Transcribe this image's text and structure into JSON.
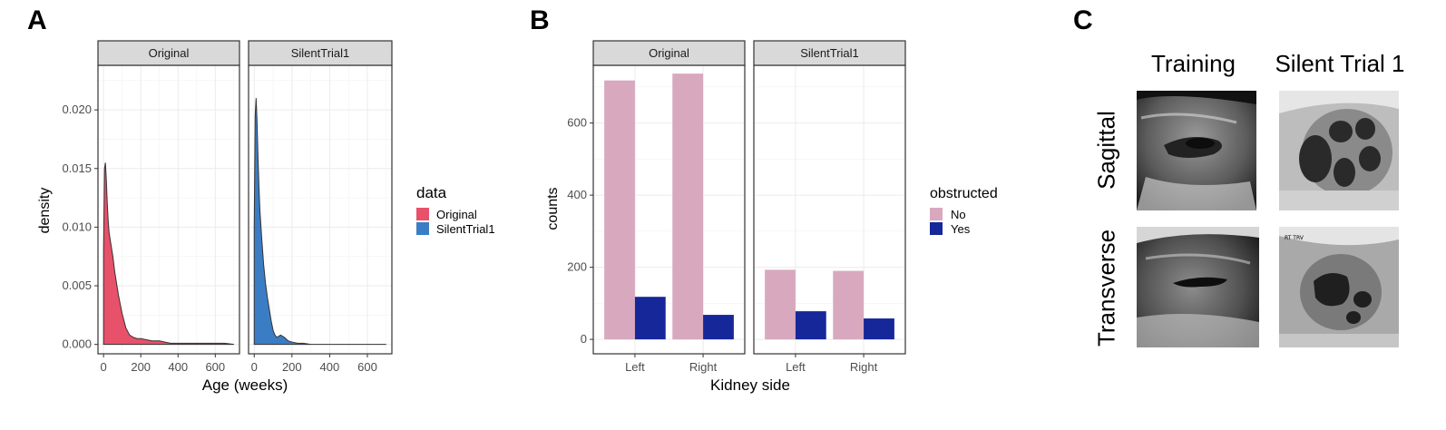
{
  "panels": {
    "a": "A",
    "b": "B",
    "c": "C"
  },
  "chart_data": [
    {
      "type": "area",
      "panel": "A",
      "facets": [
        "Original",
        "SilentTrial1"
      ],
      "xlabel": "Age (weeks)",
      "ylabel": "density",
      "xlim": [
        -30,
        730
      ],
      "ylim": [
        -0.0008,
        0.0238
      ],
      "xticks": [
        0,
        200,
        400,
        600
      ],
      "yticks": [
        0.0,
        0.005,
        0.01,
        0.015,
        0.02
      ],
      "ytick_labels": [
        "0.000",
        "0.005",
        "0.010",
        "0.015",
        "0.020"
      ],
      "legend_title": "data",
      "legend_position": "right",
      "grid": true,
      "series": [
        {
          "name": "Original",
          "color": "#E8516A",
          "x": [
            0,
            5,
            10,
            15,
            20,
            25,
            30,
            40,
            50,
            60,
            70,
            80,
            90,
            100,
            120,
            140,
            160,
            180,
            200,
            230,
            260,
            300,
            330,
            360,
            400,
            450,
            500,
            550,
            600,
            650,
            700
          ],
          "y": [
            0.008,
            0.015,
            0.0155,
            0.014,
            0.012,
            0.0105,
            0.0095,
            0.0085,
            0.0075,
            0.0062,
            0.0052,
            0.0042,
            0.0034,
            0.0026,
            0.0014,
            0.0008,
            0.0006,
            0.0005,
            0.0005,
            0.0004,
            0.0003,
            0.0003,
            0.0002,
            0.0001,
            0.0001,
            0.0001,
            0.0001,
            0.0001,
            0.0001,
            0.0001,
            0.0
          ]
        },
        {
          "name": "SilentTrial1",
          "color": "#3B7DC4",
          "x": [
            0,
            5,
            10,
            15,
            20,
            25,
            30,
            40,
            50,
            60,
            70,
            80,
            90,
            100,
            110,
            120,
            140,
            160,
            180,
            200,
            230,
            260,
            300,
            400,
            500,
            600,
            700
          ],
          "y": [
            0.01,
            0.0195,
            0.021,
            0.019,
            0.016,
            0.0135,
            0.0115,
            0.009,
            0.0068,
            0.0052,
            0.004,
            0.003,
            0.002,
            0.0012,
            0.0008,
            0.0006,
            0.0008,
            0.0006,
            0.0003,
            0.0002,
            0.0001,
            0.0001,
            0.0,
            0.0,
            0.0,
            0.0,
            0.0
          ]
        }
      ]
    },
    {
      "type": "bar",
      "panel": "B",
      "facets": [
        "Original",
        "SilentTrial1"
      ],
      "categories": [
        "Left",
        "Right"
      ],
      "xlabel": "Kidney side",
      "ylabel": "counts",
      "ylim": [
        -40,
        760
      ],
      "yticks": [
        0,
        200,
        400,
        600
      ],
      "legend_title": "obstructed",
      "legend_position": "right",
      "grid": true,
      "series": [
        {
          "name": "No",
          "color": "#D8A9BE",
          "values": {
            "Original": [
              718,
              737
            ],
            "SilentTrial1": [
              193,
              190
            ]
          }
        },
        {
          "name": "Yes",
          "color": "#16279A",
          "values": {
            "Original": [
              118,
              68
            ],
            "SilentTrial1": [
              78,
              58
            ]
          }
        }
      ]
    }
  ],
  "ultrasound": {
    "columns": [
      "Training",
      "Silent Trial 1"
    ],
    "rows": [
      "Sagittal",
      "Transverse"
    ],
    "overlay_text": "RT TRV"
  }
}
